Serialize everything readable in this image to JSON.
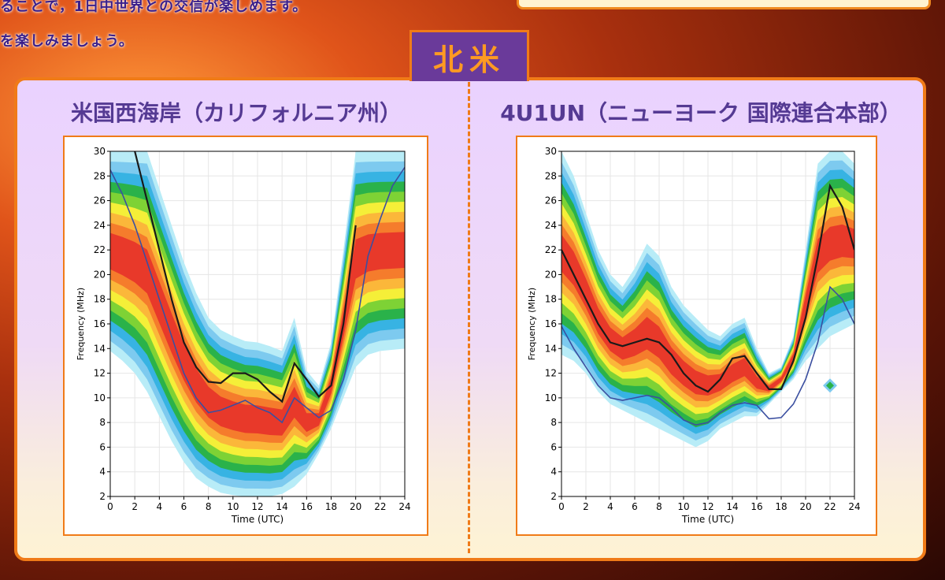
{
  "header": {
    "line1": "ることで，1日中世界との交信が楽しめます。",
    "line2": "を楽しみましょう。"
  },
  "region_label": "北米",
  "colors": {
    "accent": "#f07b18",
    "title": "#553a93",
    "tab_bg": "#6a3a9a",
    "contour_levels": [
      "#b8ecf7",
      "#7dcaef",
      "#37b3e3",
      "#2ab24a",
      "#7ed235",
      "#f5ef38",
      "#fbb73a",
      "#f57c2c",
      "#e8392a"
    ],
    "line_dark": "#1a1a1a",
    "line_blue": "#3b4fa0"
  },
  "chart_data": [
    {
      "type": "heatmap",
      "title": "米国西海岸（カリフォルニア州）",
      "xlabel": "Time (UTC)",
      "ylabel": "Frequency (MHz)",
      "xlim": [
        0,
        24
      ],
      "ylim": [
        2,
        30
      ],
      "xticks": [
        0,
        2,
        4,
        6,
        8,
        10,
        12,
        14,
        16,
        18,
        20,
        22,
        24
      ],
      "yticks": [
        2,
        4,
        6,
        8,
        10,
        12,
        14,
        16,
        18,
        20,
        22,
        24,
        26,
        28,
        30
      ],
      "grid": true,
      "lower_edge": [
        13.8,
        13,
        12,
        10.5,
        8.5,
        6.5,
        4.8,
        3.5,
        2.8,
        2.3,
        2.1,
        2.0,
        2.0,
        2.0,
        2.2,
        2.8,
        3.8,
        5.5,
        7.5,
        10.0,
        12.5,
        13.5,
        13.8,
        13.9,
        14.0
      ],
      "upper_edge": [
        30,
        30,
        30,
        30,
        27,
        24,
        21,
        18.5,
        16.5,
        15.5,
        15.0,
        14.6,
        14.5,
        14.2,
        13.8,
        16.5,
        12.2,
        11.0,
        14.5,
        22.0,
        30,
        30,
        30,
        30,
        30
      ],
      "series": [
        {
          "name": "",
          "x": [
            2,
            3,
            4,
            5,
            6,
            7,
            8,
            9,
            10,
            11,
            12,
            13,
            14,
            15,
            16,
            17,
            18,
            19,
            20
          ],
          "y": [
            30,
            26,
            22,
            18,
            14.5,
            12.5,
            11.3,
            11.2,
            12.0,
            12.0,
            11.5,
            10.5,
            9.7,
            12.8,
            11.5,
            10.1,
            11.0,
            16.0,
            24.0
          ]
        },
        {
          "name": "",
          "x": [
            0,
            1,
            2,
            3,
            4,
            5,
            6,
            7,
            8,
            9,
            10,
            11,
            12,
            13,
            14,
            15,
            16,
            17,
            18,
            19,
            20,
            21,
            22,
            23,
            24
          ],
          "y": [
            28.5,
            26.5,
            24.0,
            21.0,
            18.0,
            15.0,
            12.0,
            10.0,
            8.8,
            9.0,
            9.4,
            9.8,
            9.2,
            8.8,
            8.0,
            10.0,
            9.2,
            8.4,
            9.0,
            11.5,
            15.5,
            21.5,
            24.5,
            27.2,
            28.7
          ]
        }
      ]
    },
    {
      "type": "heatmap",
      "title": "4U1UN（ニューヨーク 国際連合本部）",
      "xlabel": "Time (UTC)",
      "ylabel": "Frequency (MHz)",
      "xlim": [
        0,
        24
      ],
      "ylim": [
        2,
        30
      ],
      "xticks": [
        0,
        2,
        4,
        6,
        8,
        10,
        12,
        14,
        16,
        18,
        20,
        22,
        24
      ],
      "yticks": [
        2,
        4,
        6,
        8,
        10,
        12,
        14,
        16,
        18,
        20,
        22,
        24,
        26,
        28,
        30
      ],
      "grid": true,
      "lower_edge": [
        13.5,
        13,
        12,
        10.5,
        9.5,
        9.0,
        8.5,
        8.0,
        7.5,
        7.0,
        6.5,
        6.0,
        6.5,
        7.5,
        8.0,
        8.5,
        8.5,
        9.5,
        10.5,
        11.5,
        13.0,
        14.0,
        15.0,
        15.5,
        16.0
      ],
      "upper_edge": [
        30,
        28,
        25,
        22,
        20,
        19,
        20.5,
        22.5,
        21.5,
        19.0,
        17.5,
        16.5,
        15.5,
        15.0,
        16.0,
        16.5,
        14.0,
        12.0,
        12.5,
        15.0,
        22.0,
        29.0,
        30,
        30,
        29.0
      ],
      "series": [
        {
          "name": "",
          "x": [
            0,
            1,
            2,
            3,
            4,
            5,
            6,
            7,
            8,
            9,
            10,
            11,
            12,
            13,
            14,
            15,
            16,
            17,
            18,
            19,
            20,
            21,
            22,
            23,
            24
          ],
          "y": [
            22.0,
            20.0,
            18.0,
            16.0,
            14.5,
            14.2,
            14.5,
            14.8,
            14.5,
            13.5,
            12.0,
            11.0,
            10.5,
            11.5,
            13.2,
            13.4,
            12.0,
            10.7,
            10.7,
            13.0,
            16.5,
            21.5,
            27.2,
            25.5,
            22.0
          ]
        },
        {
          "name": "",
          "x": [
            0,
            1,
            2,
            3,
            4,
            5,
            6,
            7,
            8,
            9,
            10,
            11,
            12,
            13,
            14,
            15,
            16,
            17,
            18,
            19,
            20,
            21,
            22,
            23,
            24
          ],
          "y": [
            15.8,
            14.0,
            12.5,
            11.0,
            10.0,
            9.8,
            10.0,
            10.2,
            10.0,
            9.2,
            8.2,
            7.8,
            8.0,
            8.8,
            9.4,
            9.6,
            9.4,
            8.3,
            8.4,
            9.5,
            11.5,
            14.5,
            19.0,
            18.0,
            16.0
          ]
        }
      ],
      "markers": [
        {
          "x": 22,
          "y": 11
        }
      ]
    }
  ]
}
